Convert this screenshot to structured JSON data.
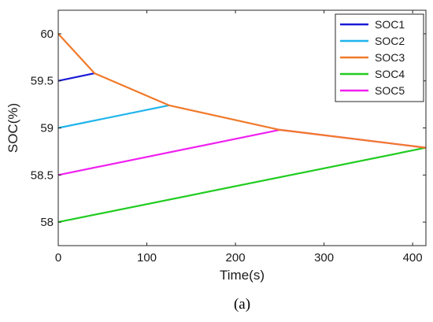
{
  "chart_data": {
    "type": "line",
    "xlabel": "Time(s)",
    "ylabel": "SOC(%)",
    "xlim": [
      0,
      415
    ],
    "ylim": [
      57.75,
      60.25
    ],
    "x_ticks": [
      0,
      100,
      200,
      300,
      400
    ],
    "y_ticks": [
      58,
      58.5,
      59,
      59.5,
      60
    ],
    "x_tick_labels": [
      "0",
      "100",
      "200",
      "300",
      "400"
    ],
    "y_tick_labels": [
      "58",
      "58.5",
      "59",
      "59.5",
      "60"
    ],
    "grid": false,
    "legend_position": "top-right",
    "series": [
      {
        "name": "SOC1",
        "color": "#1a1ad6",
        "points": [
          [
            0,
            59.5
          ],
          [
            41,
            59.58
          ]
        ]
      },
      {
        "name": "SOC2",
        "color": "#1eb4ec",
        "points": [
          [
            0,
            59.0
          ],
          [
            125,
            59.24
          ]
        ]
      },
      {
        "name": "SOC3",
        "color": "#f07a2a",
        "points": [
          [
            0,
            60.0
          ],
          [
            41,
            59.58
          ],
          [
            125,
            59.24
          ],
          [
            250,
            58.98
          ],
          [
            415,
            58.79
          ]
        ]
      },
      {
        "name": "SOC4",
        "color": "#20cc20",
        "points": [
          [
            0,
            58.0
          ],
          [
            415,
            58.79
          ]
        ]
      },
      {
        "name": "SOC5",
        "color": "#f020f0",
        "points": [
          [
            0,
            58.5
          ],
          [
            250,
            58.98
          ],
          [
            415,
            58.79
          ]
        ]
      }
    ]
  },
  "caption": "(a)"
}
